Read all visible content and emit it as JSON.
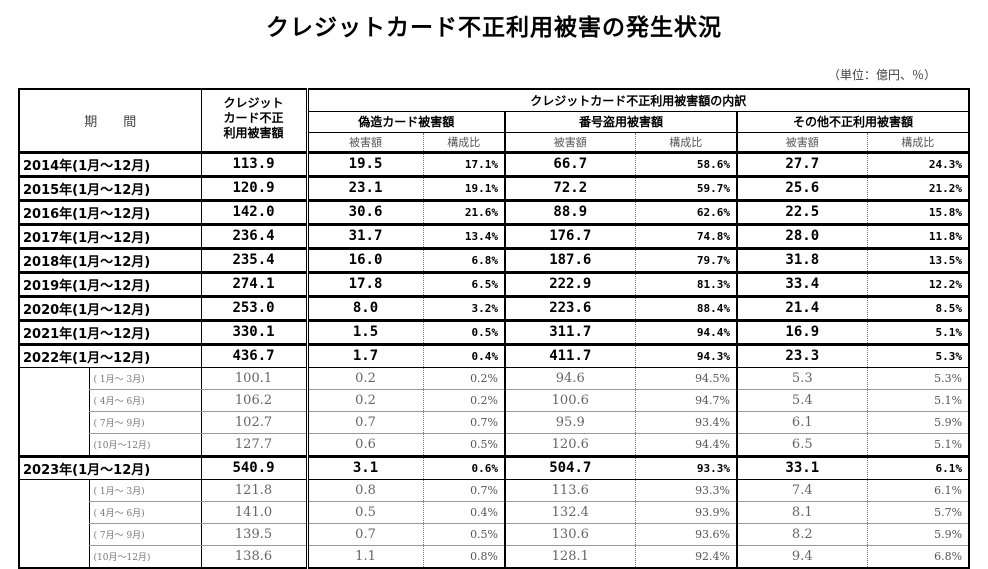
{
  "title": "クレジットカード不正利用被害の発生状況",
  "unit_note": "（単位：億円、％）",
  "headers": {
    "period": "期　　間",
    "total": "クレジット\nカード不正\n利用被害額",
    "breakdown": "クレジットカード不正利用被害額の内訳",
    "forged": "偽造カード被害額",
    "stolen": "番号盗用被害額",
    "other": "その他不正利用被害額",
    "amount": "被害額",
    "ratio": "構成比"
  },
  "rows": [
    {
      "type": "year",
      "period": "2014年(1月～12月)",
      "total": "113.9",
      "forged": "19.5",
      "forged_pct": "17.1%",
      "stolen": "66.7",
      "stolen_pct": "58.6%",
      "other": "27.7",
      "other_pct": "24.3%"
    },
    {
      "type": "year",
      "period": "2015年(1月～12月)",
      "total": "120.9",
      "forged": "23.1",
      "forged_pct": "19.1%",
      "stolen": "72.2",
      "stolen_pct": "59.7%",
      "other": "25.6",
      "other_pct": "21.2%"
    },
    {
      "type": "year",
      "period": "2016年(1月～12月)",
      "total": "142.0",
      "forged": "30.6",
      "forged_pct": "21.6%",
      "stolen": "88.9",
      "stolen_pct": "62.6%",
      "other": "22.5",
      "other_pct": "15.8%"
    },
    {
      "type": "year",
      "period": "2017年(1月～12月)",
      "total": "236.4",
      "forged": "31.7",
      "forged_pct": "13.4%",
      "stolen": "176.7",
      "stolen_pct": "74.8%",
      "other": "28.0",
      "other_pct": "11.8%"
    },
    {
      "type": "year",
      "period": "2018年(1月～12月)",
      "total": "235.4",
      "forged": "16.0",
      "forged_pct": "6.8%",
      "stolen": "187.6",
      "stolen_pct": "79.7%",
      "other": "31.8",
      "other_pct": "13.5%"
    },
    {
      "type": "year",
      "period": "2019年(1月～12月)",
      "total": "274.1",
      "forged": "17.8",
      "forged_pct": "6.5%",
      "stolen": "222.9",
      "stolen_pct": "81.3%",
      "other": "33.4",
      "other_pct": "12.2%"
    },
    {
      "type": "year",
      "period": "2020年(1月～12月)",
      "total": "253.0",
      "forged": "8.0",
      "forged_pct": "3.2%",
      "stolen": "223.6",
      "stolen_pct": "88.4%",
      "other": "21.4",
      "other_pct": "8.5%"
    },
    {
      "type": "year",
      "period": "2021年(1月～12月)",
      "total": "330.1",
      "forged": "1.5",
      "forged_pct": "0.5%",
      "stolen": "311.7",
      "stolen_pct": "94.4%",
      "other": "16.9",
      "other_pct": "5.1%"
    },
    {
      "type": "year",
      "period": "2022年(1月～12月)",
      "total": "436.7",
      "forged": "1.7",
      "forged_pct": "0.4%",
      "stolen": "411.7",
      "stolen_pct": "94.3%",
      "other": "23.3",
      "other_pct": "5.3%"
    },
    {
      "type": "q",
      "period": "( 1月～ 3月)",
      "total": "100.1",
      "forged": "0.2",
      "forged_pct": "0.2%",
      "stolen": "94.6",
      "stolen_pct": "94.5%",
      "other": "5.3",
      "other_pct": "5.3%"
    },
    {
      "type": "q",
      "period": "( 4月～ 6月)",
      "total": "106.2",
      "forged": "0.2",
      "forged_pct": "0.2%",
      "stolen": "100.6",
      "stolen_pct": "94.7%",
      "other": "5.4",
      "other_pct": "5.1%"
    },
    {
      "type": "q",
      "period": "( 7月～ 9月)",
      "total": "102.7",
      "forged": "0.7",
      "forged_pct": "0.7%",
      "stolen": "95.9",
      "stolen_pct": "93.4%",
      "other": "6.1",
      "other_pct": "5.9%"
    },
    {
      "type": "q",
      "period": "(10月～12月)",
      "total": "127.7",
      "forged": "0.6",
      "forged_pct": "0.5%",
      "stolen": "120.6",
      "stolen_pct": "94.4%",
      "other": "6.5",
      "other_pct": "5.1%"
    },
    {
      "type": "year",
      "period": "2023年(1月～12月)",
      "total": "540.9",
      "forged": "3.1",
      "forged_pct": "0.6%",
      "stolen": "504.7",
      "stolen_pct": "93.3%",
      "other": "33.1",
      "other_pct": "6.1%"
    },
    {
      "type": "q",
      "period": "( 1月～ 3月)",
      "total": "121.8",
      "forged": "0.8",
      "forged_pct": "0.7%",
      "stolen": "113.6",
      "stolen_pct": "93.3%",
      "other": "7.4",
      "other_pct": "6.1%"
    },
    {
      "type": "q",
      "period": "( 4月～ 6月)",
      "total": "141.0",
      "forged": "0.5",
      "forged_pct": "0.4%",
      "stolen": "132.4",
      "stolen_pct": "93.9%",
      "other": "8.1",
      "other_pct": "5.7%"
    },
    {
      "type": "q",
      "period": "( 7月～ 9月)",
      "total": "139.5",
      "forged": "0.7",
      "forged_pct": "0.5%",
      "stolen": "130.6",
      "stolen_pct": "93.6%",
      "other": "8.2",
      "other_pct": "5.9%"
    },
    {
      "type": "q",
      "period": "(10月～12月)",
      "total": "138.6",
      "forged": "1.1",
      "forged_pct": "0.8%",
      "stolen": "128.1",
      "stolen_pct": "92.4%",
      "other": "9.4",
      "other_pct": "6.8%"
    }
  ]
}
